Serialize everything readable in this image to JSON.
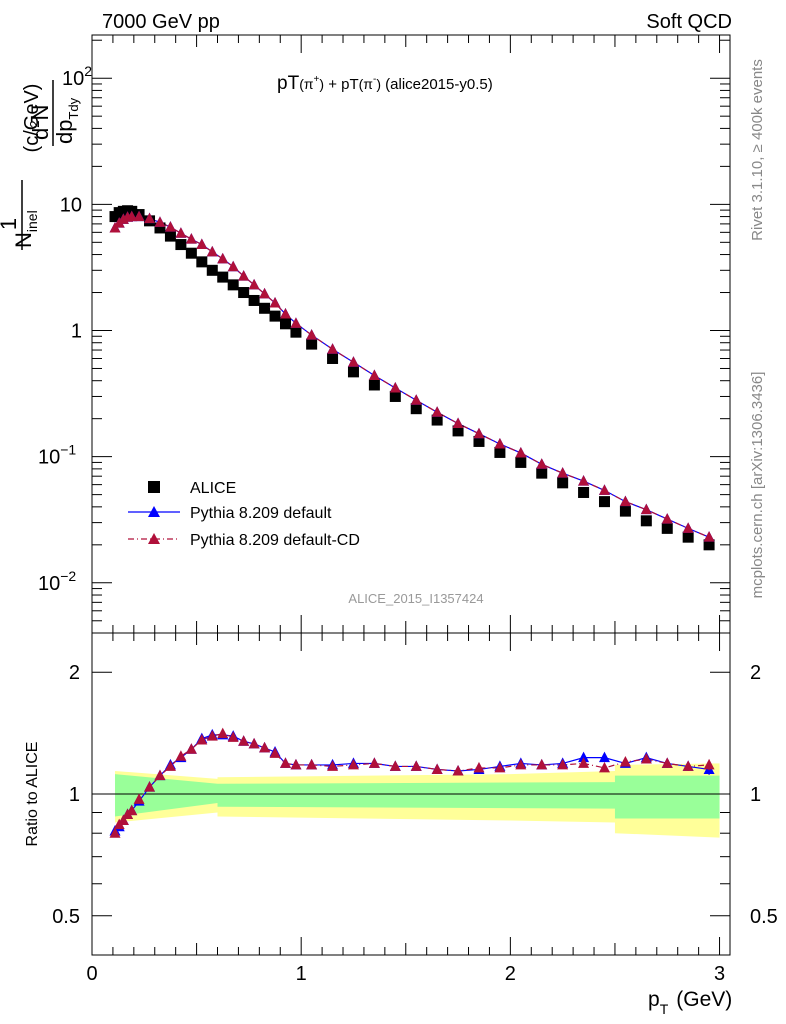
{
  "header": {
    "left": "7000 GeV pp",
    "right": "Soft QCD"
  },
  "title": {
    "main": "pT",
    "pip": "(π",
    "pip_sup": "+",
    "close1": ")",
    "plus": " + pT",
    "pim": "(π",
    "pim_sup": "-",
    "close2": ")",
    "tag": " (alice2015-y0.5)"
  },
  "ylabel": {
    "one": "1",
    "num_d": "d",
    "num_sup": "2",
    "num_n": "N",
    "den_n": "N",
    "den_sub": "inel",
    "den_dp": "dp",
    "den_sub2": "Tdy",
    "units": "(c/GeV)"
  },
  "xlabel": {
    "p": "p",
    "sub": "T",
    "units": "(GeV)"
  },
  "ratio_ylabel": "Ratio to ALICE",
  "side_text": {
    "rivet": "Rivet 3.1.10, ≥ 400k events",
    "mcplots": "mcplots.cern.ch [arXiv:1306.3436]"
  },
  "analysis_id": "ALICE_2015_I1357424",
  "legend": [
    {
      "label": "ALICE",
      "marker": "square",
      "color": "#000000"
    },
    {
      "label": "Pythia 8.209 default",
      "marker": "triangle",
      "color": "#0000ff",
      "line": "solid"
    },
    {
      "label": "Pythia 8.209 default-CD",
      "marker": "triangle",
      "color": "#b0103a",
      "line": "dashdot"
    }
  ],
  "main_yticks": [
    {
      "base": "10",
      "exp": "2",
      "value": 100
    },
    {
      "base": "10",
      "exp": "",
      "value": 10
    },
    {
      "base": "1",
      "exp": "",
      "value": 1
    },
    {
      "base": "10",
      "exp": "−1",
      "value": 0.1
    },
    {
      "base": "10",
      "exp": "−2",
      "value": 0.01
    }
  ],
  "ratio_yticks": [
    {
      "label": "2",
      "value": 2
    },
    {
      "label": "1",
      "value": 1
    },
    {
      "label": "0.5",
      "value": 0.5
    }
  ],
  "xticks": [
    {
      "label": "0",
      "value": 0
    },
    {
      "label": "1",
      "value": 1
    },
    {
      "label": "2",
      "value": 2
    },
    {
      "label": "3",
      "value": 3
    }
  ],
  "chart_data": {
    "type": "scatter",
    "x_scale": "linear",
    "y_scale": "log",
    "xlim": [
      0,
      3.05
    ],
    "ylim": [
      0.004,
      220
    ],
    "ratio_ylim": [
      0.4,
      2.5
    ],
    "ratio_scale": "log",
    "x": [
      0.11,
      0.13,
      0.15,
      0.17,
      0.19,
      0.225,
      0.275,
      0.325,
      0.375,
      0.425,
      0.475,
      0.525,
      0.575,
      0.625,
      0.675,
      0.725,
      0.775,
      0.825,
      0.875,
      0.925,
      0.975,
      1.05,
      1.15,
      1.25,
      1.35,
      1.45,
      1.55,
      1.65,
      1.75,
      1.85,
      1.95,
      2.05,
      2.15,
      2.25,
      2.35,
      2.45,
      2.55,
      2.65,
      2.75,
      2.85,
      2.95
    ],
    "series": [
      {
        "name": "ALICE",
        "values": [
          8.0,
          8.6,
          8.8,
          8.9,
          8.8,
          8.3,
          7.4,
          6.5,
          5.6,
          4.8,
          4.1,
          3.5,
          3.0,
          2.65,
          2.3,
          2.0,
          1.73,
          1.5,
          1.3,
          1.13,
          0.97,
          0.78,
          0.6,
          0.47,
          0.37,
          0.3,
          0.24,
          0.195,
          0.16,
          0.132,
          0.108,
          0.09,
          0.074,
          0.062,
          0.052,
          0.044,
          0.037,
          0.031,
          0.027,
          0.023,
          0.02
        ],
        "band_inner": [
          [
            0.11,
            0.88,
            1.12
          ],
          [
            0.6,
            0.95,
            1.06
          ],
          [
            0.6,
            0.93,
            1.06
          ],
          [
            2.5,
            0.92,
            1.07
          ],
          [
            2.5,
            0.87,
            1.11
          ],
          [
            3.0,
            0.87,
            1.11
          ]
        ],
        "band_outer": [
          [
            0.11,
            0.85,
            1.14
          ],
          [
            0.6,
            0.9,
            1.09
          ],
          [
            0.6,
            0.88,
            1.1
          ],
          [
            2.0,
            0.86,
            1.12
          ],
          [
            2.5,
            0.85,
            1.14
          ],
          [
            2.5,
            0.8,
            1.18
          ],
          [
            3.0,
            0.78,
            1.19
          ]
        ]
      },
      {
        "name": "Pythia 8.209 default",
        "values": [
          6.5,
          7.1,
          7.6,
          7.9,
          8.0,
          8.0,
          7.7,
          7.2,
          6.6,
          5.9,
          5.3,
          4.8,
          4.2,
          3.7,
          3.2,
          2.7,
          2.3,
          1.95,
          1.65,
          1.35,
          1.14,
          0.92,
          0.71,
          0.56,
          0.44,
          0.35,
          0.28,
          0.225,
          0.183,
          0.152,
          0.126,
          0.107,
          0.087,
          0.074,
          0.064,
          0.054,
          0.044,
          0.038,
          0.032,
          0.027,
          0.023
        ],
        "ratio": [
          0.81,
          0.83,
          0.86,
          0.89,
          0.91,
          0.96,
          1.04,
          1.11,
          1.18,
          1.23,
          1.29,
          1.37,
          1.4,
          1.4,
          1.39,
          1.35,
          1.33,
          1.3,
          1.27,
          1.19,
          1.18,
          1.18,
          1.18,
          1.19,
          1.19,
          1.17,
          1.17,
          1.15,
          1.14,
          1.15,
          1.17,
          1.19,
          1.18,
          1.19,
          1.23,
          1.23,
          1.19,
          1.23,
          1.19,
          1.17,
          1.15
        ],
        "ratio_err": [
          0,
          0,
          0,
          0,
          0,
          0,
          0,
          0,
          0,
          0,
          0,
          0,
          0,
          0,
          0,
          0,
          0,
          0,
          0,
          0,
          0,
          0,
          0,
          0,
          0,
          0,
          0,
          0,
          0,
          0,
          0,
          0,
          0,
          0,
          0,
          0,
          0.02,
          0.025,
          0.03,
          0.03,
          0.035
        ]
      },
      {
        "name": "Pythia 8.209 default-CD",
        "values": [
          6.5,
          7.1,
          7.6,
          7.9,
          8.0,
          8.0,
          7.7,
          7.2,
          6.6,
          5.9,
          5.3,
          4.8,
          4.2,
          3.7,
          3.2,
          2.7,
          2.3,
          1.95,
          1.65,
          1.35,
          1.14,
          0.92,
          0.71,
          0.56,
          0.44,
          0.35,
          0.28,
          0.225,
          0.183,
          0.152,
          0.126,
          0.107,
          0.087,
          0.074,
          0.064,
          0.054,
          0.044,
          0.038,
          0.032,
          0.027,
          0.023
        ],
        "ratio": [
          0.8,
          0.84,
          0.86,
          0.89,
          0.91,
          0.97,
          1.04,
          1.11,
          1.17,
          1.24,
          1.29,
          1.36,
          1.39,
          1.41,
          1.38,
          1.35,
          1.33,
          1.3,
          1.26,
          1.19,
          1.18,
          1.18,
          1.17,
          1.18,
          1.19,
          1.17,
          1.17,
          1.15,
          1.14,
          1.16,
          1.16,
          1.18,
          1.18,
          1.18,
          1.19,
          1.16,
          1.2,
          1.22,
          1.19,
          1.17,
          1.18
        ],
        "ratio_err": [
          0,
          0,
          0,
          0,
          0,
          0,
          0,
          0,
          0,
          0,
          0,
          0,
          0,
          0,
          0,
          0,
          0,
          0,
          0,
          0,
          0,
          0,
          0,
          0,
          0,
          0,
          0,
          0,
          0,
          0,
          0,
          0,
          0,
          0,
          0,
          0,
          0.02,
          0.025,
          0.03,
          0.03,
          0.035
        ]
      }
    ]
  }
}
